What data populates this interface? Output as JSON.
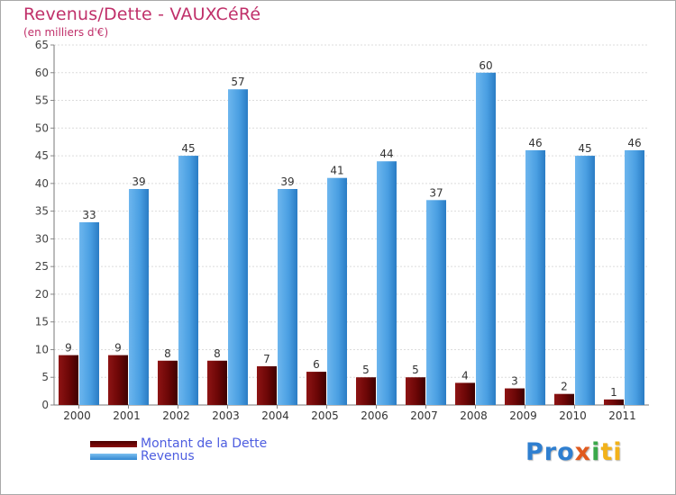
{
  "title": "Revenus/Dette - VAUXCéRé",
  "subtitle": "(en milliers d'€)",
  "chart_data": {
    "type": "bar",
    "title": "Revenus/Dette - VAUXCéRé",
    "ylabel": "(en milliers d'€)",
    "xlabel": "",
    "categories": [
      "2000",
      "2001",
      "2002",
      "2003",
      "2004",
      "2005",
      "2006",
      "2007",
      "2008",
      "2009",
      "2010",
      "2011"
    ],
    "series": [
      {
        "name": "Montant de la Dette",
        "values": [
          9,
          9,
          8,
          8,
          7,
          6,
          5,
          5,
          4,
          3,
          2,
          1
        ],
        "color": "#8b0d0d"
      },
      {
        "name": "Revenus",
        "values": [
          33,
          39,
          45,
          57,
          39,
          41,
          44,
          37,
          60,
          46,
          45,
          46
        ],
        "color": "#4aa3e6"
      }
    ],
    "ylim": [
      0,
      65
    ],
    "yticks": [
      0,
      5,
      10,
      15,
      20,
      25,
      30,
      35,
      40,
      45,
      50,
      55,
      60,
      65
    ],
    "grid": true,
    "legend": "bottom-left"
  },
  "legend": {
    "items": [
      {
        "label": "Montant de la Dette",
        "color": "#8b0d0d"
      },
      {
        "label": "Revenus",
        "color": "#4aa3e6"
      }
    ]
  },
  "logo": {
    "p1": "Pro",
    "p2": "x",
    "p3": "i",
    "p4": "ti"
  }
}
